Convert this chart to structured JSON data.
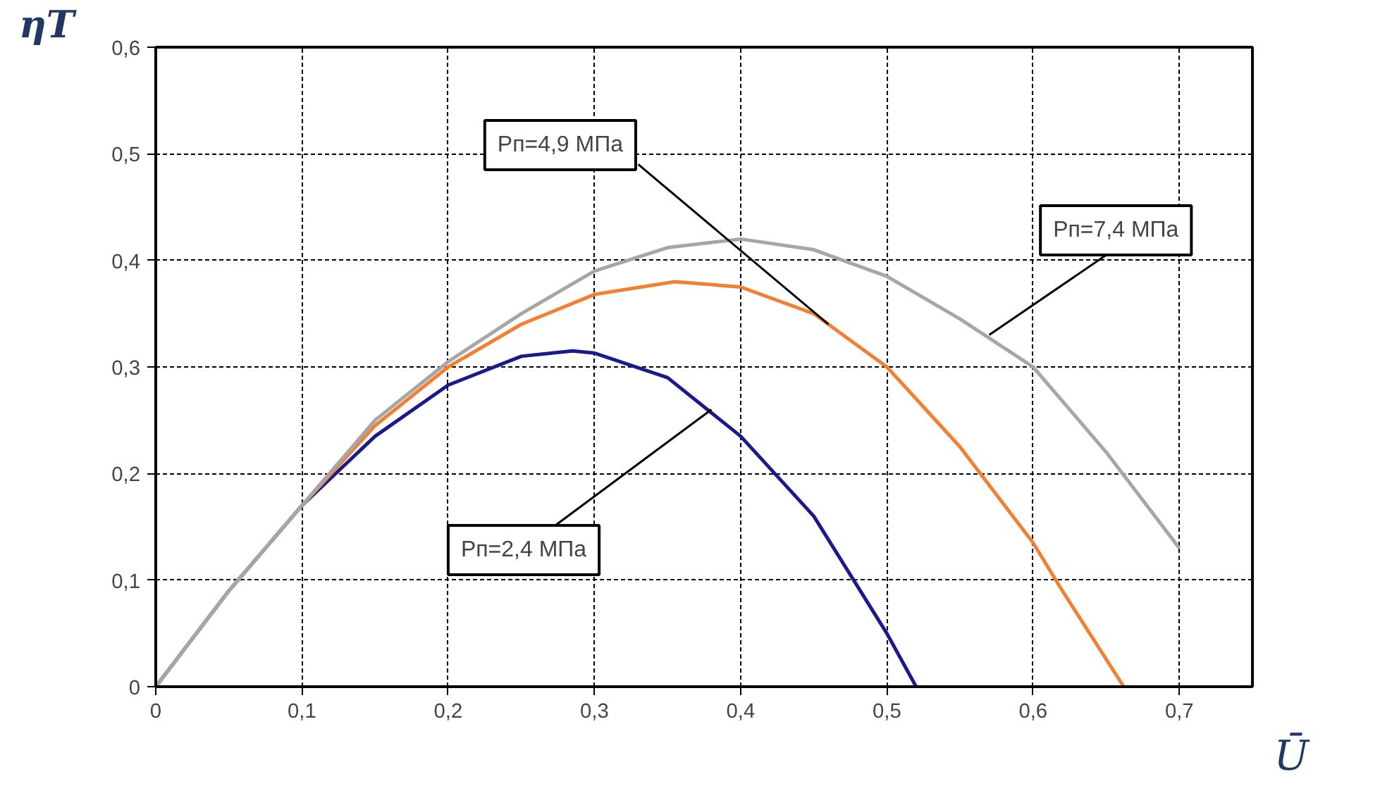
{
  "chart_data": {
    "type": "line",
    "xlabel": "Ū",
    "ylabel": "ηT",
    "xlim": [
      0,
      0.75
    ],
    "ylim": [
      0,
      0.6
    ],
    "xticks": [
      0,
      {
        "value": 0.1,
        "label": "0,1"
      },
      {
        "value": 0.2,
        "label": "0,2"
      },
      {
        "value": 0.3,
        "label": "0,3"
      },
      {
        "value": 0.4,
        "label": "0,4"
      },
      {
        "value": 0.5,
        "label": "0,5"
      },
      {
        "value": 0.6,
        "label": "0,6"
      },
      {
        "value": 0.7,
        "label": "0,7"
      }
    ],
    "yticks": [
      0,
      {
        "value": 0.1,
        "label": "0,1"
      },
      {
        "value": 0.2,
        "label": "0,2"
      },
      {
        "value": 0.3,
        "label": "0,3"
      },
      {
        "value": 0.4,
        "label": "0,4"
      },
      {
        "value": 0.5,
        "label": "0,5"
      },
      {
        "value": 0.6,
        "label": "0,6"
      }
    ],
    "grid": true,
    "marker": "none",
    "line_style": "solid",
    "annotations": [
      {
        "text": "Pп=2,4 МПа",
        "x": 0.38,
        "y": 0.26
      },
      {
        "text": "Pп=4,9 МПа",
        "x": 0.46,
        "y": 0.34
      },
      {
        "text": "Pп=7,4 МПа",
        "x": 0.57,
        "y": 0.33
      }
    ],
    "series": [
      {
        "color": "#1a1a8c",
        "x": [
          0,
          0.05,
          0.1,
          0.15,
          0.2,
          0.25,
          0.285,
          0.3,
          0.35,
          0.4,
          0.45,
          0.5,
          0.52
        ],
        "values": [
          0,
          0.09,
          0.17,
          0.235,
          0.283,
          0.31,
          0.315,
          0.313,
          0.29,
          0.235,
          0.16,
          0.05,
          0
        ]
      },
      {
        "color": "#f28032",
        "x": [
          0,
          0.05,
          0.1,
          0.15,
          0.2,
          0.25,
          0.3,
          0.355,
          0.4,
          0.45,
          0.5,
          0.55,
          0.6,
          0.62,
          0.662
        ],
        "values": [
          0,
          0.09,
          0.17,
          0.245,
          0.3,
          0.34,
          0.368,
          0.38,
          0.375,
          0.35,
          0.3,
          0.225,
          0.135,
          0.09,
          0
        ]
      },
      {
        "color": "#a6a6a6",
        "x": [
          0,
          0.05,
          0.1,
          0.15,
          0.2,
          0.25,
          0.3,
          0.35,
          0.4,
          0.45,
          0.5,
          0.55,
          0.6,
          0.65,
          0.7
        ],
        "values": [
          0,
          0.09,
          0.17,
          0.25,
          0.305,
          0.35,
          0.39,
          0.412,
          0.42,
          0.41,
          0.385,
          0.345,
          0.3,
          0.22,
          0.13
        ]
      }
    ]
  }
}
